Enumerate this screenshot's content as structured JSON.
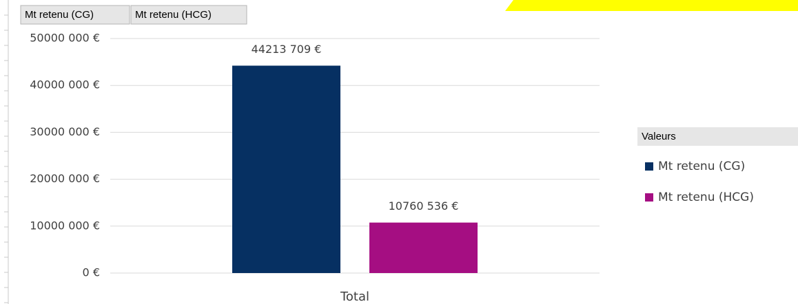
{
  "chart_data": {
    "type": "bar",
    "categories": [
      "Total"
    ],
    "series": [
      {
        "name": "Mt retenu (CG)",
        "color": "#063062",
        "values": [
          44213709
        ],
        "value_labels": [
          "44213 709 €"
        ]
      },
      {
        "name": "Mt retenu (HCG)",
        "color": "#a50e82",
        "values": [
          10760536
        ],
        "value_labels": [
          "10760 536 €"
        ]
      }
    ],
    "ylim": [
      0,
      50000000
    ],
    "yticks": [
      {
        "value": 0,
        "label": "0 €"
      },
      {
        "value": 10000000,
        "label": "10000 000 €"
      },
      {
        "value": 20000000,
        "label": "20000 000 €"
      },
      {
        "value": 30000000,
        "label": "30000 000 €"
      },
      {
        "value": 40000000,
        "label": "40000 000 €"
      },
      {
        "value": 50000000,
        "label": "50000 000 €"
      }
    ],
    "grid": true,
    "legend_title": "Valeurs",
    "legend": "right"
  }
}
